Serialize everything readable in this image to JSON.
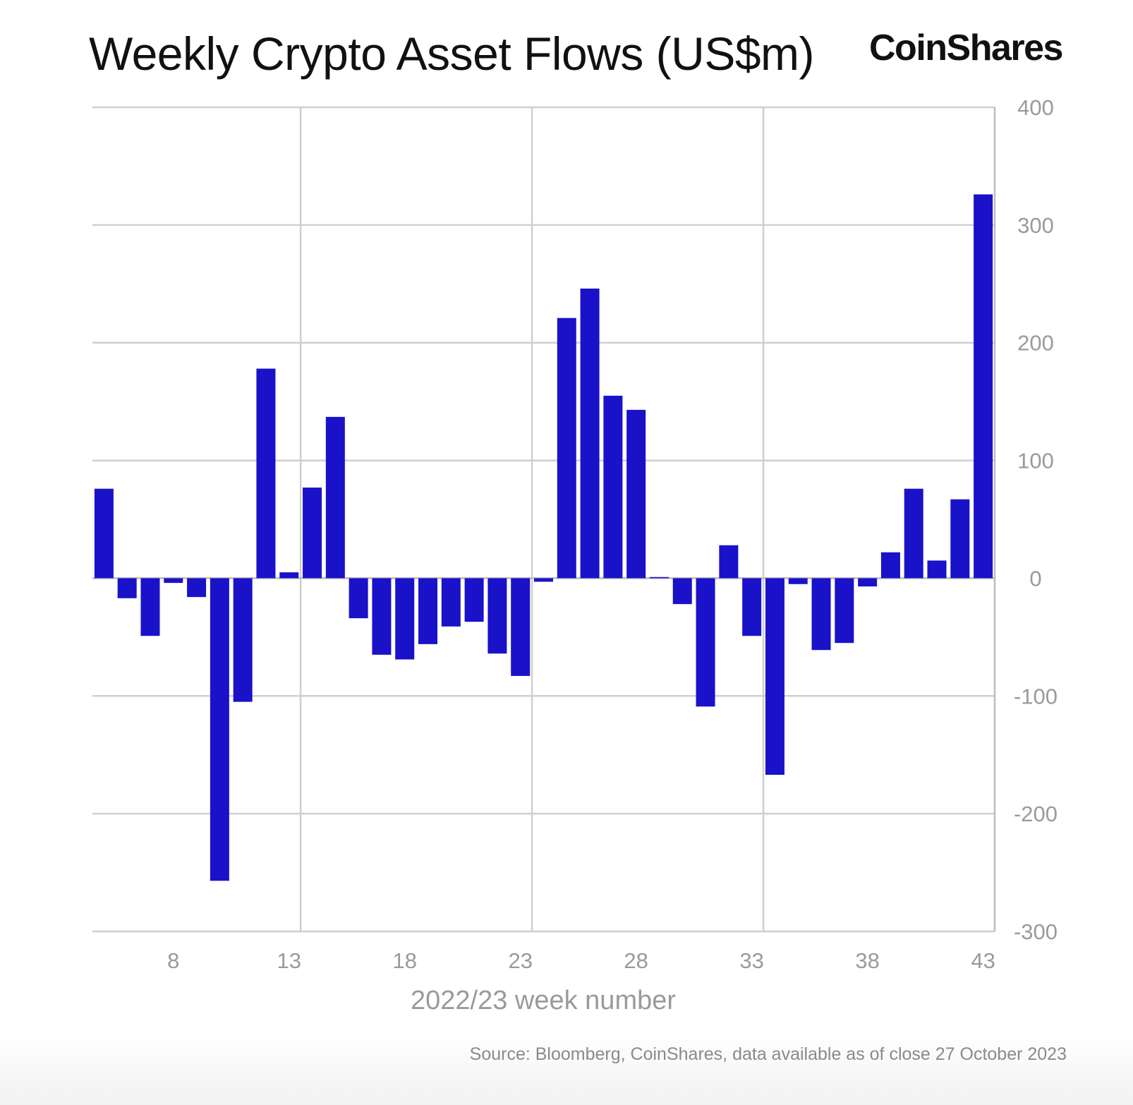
{
  "chart_data": {
    "type": "bar",
    "title": "Weekly Crypto Asset Flows (US$m)",
    "brand": "CoinShares",
    "source": "Source: Bloomberg, CoinShares, data available as of close 27 October 2023",
    "xlabel": "2022/23 week number",
    "ylabel": "",
    "x": [
      5,
      6,
      7,
      8,
      9,
      10,
      11,
      12,
      13,
      14,
      15,
      16,
      17,
      18,
      19,
      20,
      21,
      22,
      23,
      24,
      25,
      26,
      27,
      28,
      29,
      30,
      31,
      32,
      33,
      34,
      35,
      36,
      37,
      38,
      39,
      40,
      41,
      42,
      43
    ],
    "values": [
      76,
      -17,
      -49,
      -4,
      -16,
      -257,
      -105,
      178,
      5,
      77,
      137,
      -34,
      -65,
      -69,
      -56,
      -41,
      -37,
      -64,
      -83,
      -3,
      221,
      246,
      155,
      143,
      1,
      -22,
      -109,
      28,
      -49,
      -167,
      -5,
      -61,
      -55,
      -7,
      22,
      76,
      15,
      67,
      326
    ],
    "x_ticks": [
      "8",
      "13",
      "18",
      "23",
      "28",
      "33",
      "38",
      "43"
    ],
    "y_ticks": [
      "400",
      "300",
      "200",
      "100",
      "0",
      "-100",
      "-200",
      "-300"
    ],
    "ylim": [
      -300,
      400
    ],
    "y_axis_side": "right",
    "grid": true,
    "bar_color": "#1a12c8"
  }
}
